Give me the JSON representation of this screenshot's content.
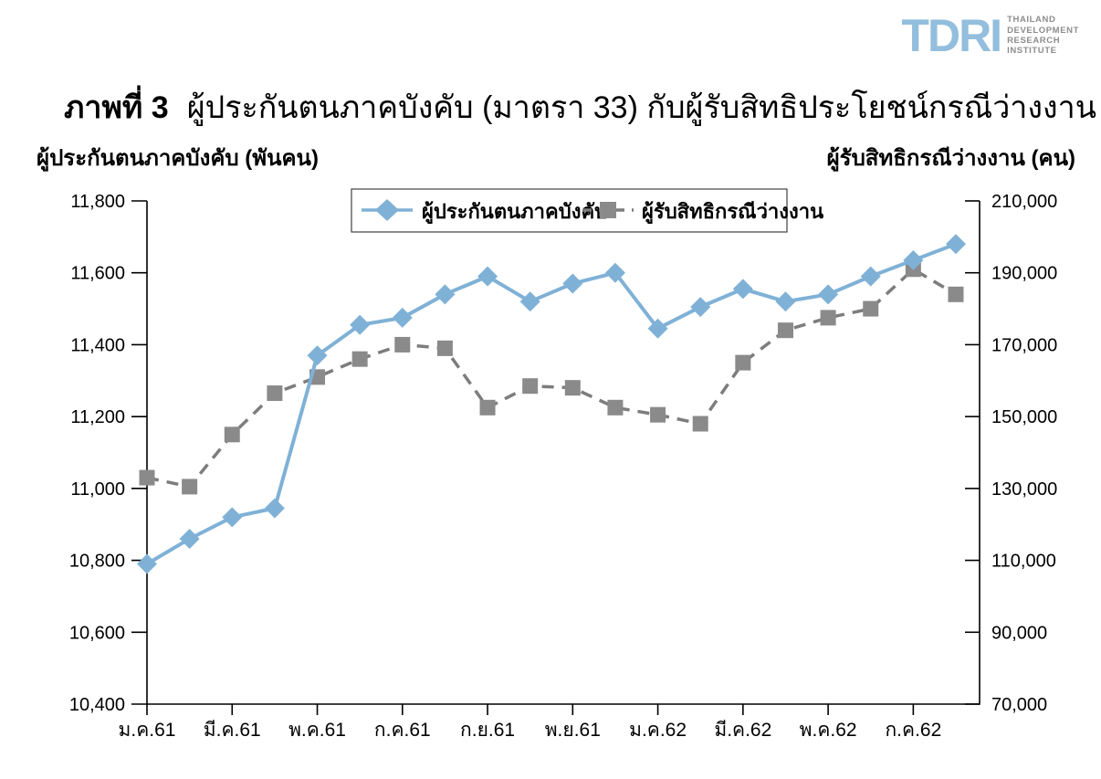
{
  "logo": {
    "name": "TDRI",
    "lines": [
      "THAILAND",
      "DEVELOPMENT",
      "RESEARCH",
      "INSTITUTE"
    ],
    "brand_color": "#93bedd",
    "text_color": "#8c8c8c"
  },
  "title": {
    "prefix": "ภาพที่ 3",
    "text": "ผู้ประกันตนภาคบังคับ (มาตรา 33) กับผู้รับสิทธิประโยชน์กรณีว่างงาน"
  },
  "axis_headers": {
    "left": "ผู้ประกันตนภาคบังคับ (พันคน)",
    "right": "ผู้รับสิทธิกรณีว่างงาน (คน)"
  },
  "chart_data": {
    "type": "line",
    "n_points": 20,
    "x_tick_labels": [
      "ม.ค.61",
      "มี.ค.61",
      "พ.ค.61",
      "ก.ค.61",
      "ก.ย.61",
      "พ.ย.61",
      "ม.ค.62",
      "มี.ค.62",
      "พ.ค.62",
      "ก.ค.62"
    ],
    "x_tick_indices": [
      0,
      2,
      4,
      6,
      8,
      10,
      12,
      14,
      16,
      18
    ],
    "left_axis": {
      "min": 10400,
      "max": 11800,
      "step": 200,
      "tick_labels": [
        "10,400",
        "10,600",
        "10,800",
        "11,000",
        "11,200",
        "11,400",
        "11,600",
        "11,800"
      ]
    },
    "right_axis": {
      "min": 70000,
      "max": 210000,
      "step": 20000,
      "tick_labels": [
        "70,000",
        "90,000",
        "110,000",
        "130,000",
        "150,000",
        "170,000",
        "190,000",
        "210,000"
      ]
    },
    "grid": false,
    "legend_position": "top-center",
    "series": [
      {
        "id": "unemployed-benefit",
        "name": "ผู้รับสิทธิกรณีว่างงาน",
        "axis": "right",
        "color": "#8a8a8a",
        "line_color": "#7d7d7d",
        "marker": "square",
        "line_style": "dashed",
        "values": [
          133000,
          130500,
          145000,
          156500,
          161000,
          166000,
          170000,
          169000,
          152500,
          158500,
          158000,
          152500,
          150500,
          148000,
          165000,
          174000,
          177500,
          180000,
          191000,
          184000
        ]
      },
      {
        "id": "insured-m33",
        "name": "ผู้ประกันตนภาคบังคับ",
        "axis": "left",
        "color": "#7fb1d6",
        "line_color": "#7fb1d6",
        "marker": "diamond",
        "line_style": "solid",
        "values": [
          10790,
          10860,
          10920,
          10945,
          11370,
          11455,
          11475,
          11540,
          11590,
          11520,
          11570,
          11600,
          11445,
          11505,
          11555,
          11520,
          11540,
          11590,
          11635,
          11680
        ]
      }
    ]
  }
}
